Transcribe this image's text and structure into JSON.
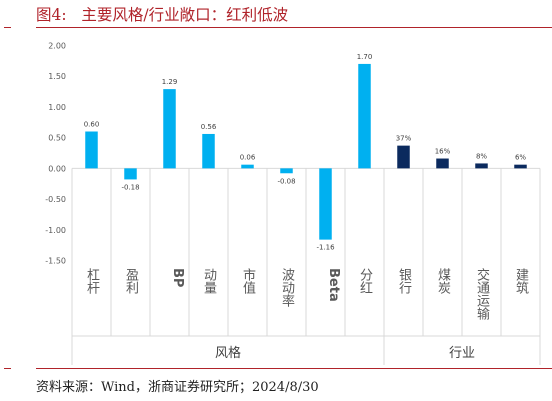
{
  "header": {
    "title": "图4:   主要风格/行业敞口：红利低波"
  },
  "footer": {
    "source": "资料来源：Wind，浙商证券研究所；2024/8/30"
  },
  "colors": {
    "style_bar": "#00b0f0",
    "industry_bar": "#0b2a5e",
    "accent": "#b0232a",
    "axis_text": "#595959"
  },
  "chart_data": {
    "type": "bar",
    "title": "主要风格/行业敞口：红利低波",
    "ylim": [
      -1.5,
      2.0
    ],
    "yticks": [
      "2.00",
      "1.50",
      "1.00",
      "0.50",
      "0.00",
      "-0.50",
      "-1.00",
      "-1.50"
    ],
    "ytick_values": [
      2.0,
      1.5,
      1.0,
      0.5,
      0.0,
      -0.5,
      -1.0,
      -1.5
    ],
    "grid": false,
    "groups": [
      {
        "name": "风格",
        "categories": [
          "杠杆",
          "盈利",
          "BP",
          "动量",
          "市值",
          "波动率",
          "Beta",
          "分红"
        ],
        "values": [
          0.6,
          -0.18,
          1.29,
          0.56,
          0.06,
          -0.08,
          -1.16,
          1.7
        ],
        "labels": [
          "0.60",
          "-0.18",
          "1.29",
          "0.56",
          "0.06",
          "-0.08",
          "-1.16",
          "1.70"
        ]
      },
      {
        "name": "行业",
        "categories": [
          "银行",
          "煤炭",
          "交通运输",
          "建筑"
        ],
        "values": [
          0.37,
          0.16,
          0.08,
          0.06
        ],
        "labels": [
          "37%",
          "16%",
          "8%",
          "6%"
        ]
      }
    ]
  }
}
